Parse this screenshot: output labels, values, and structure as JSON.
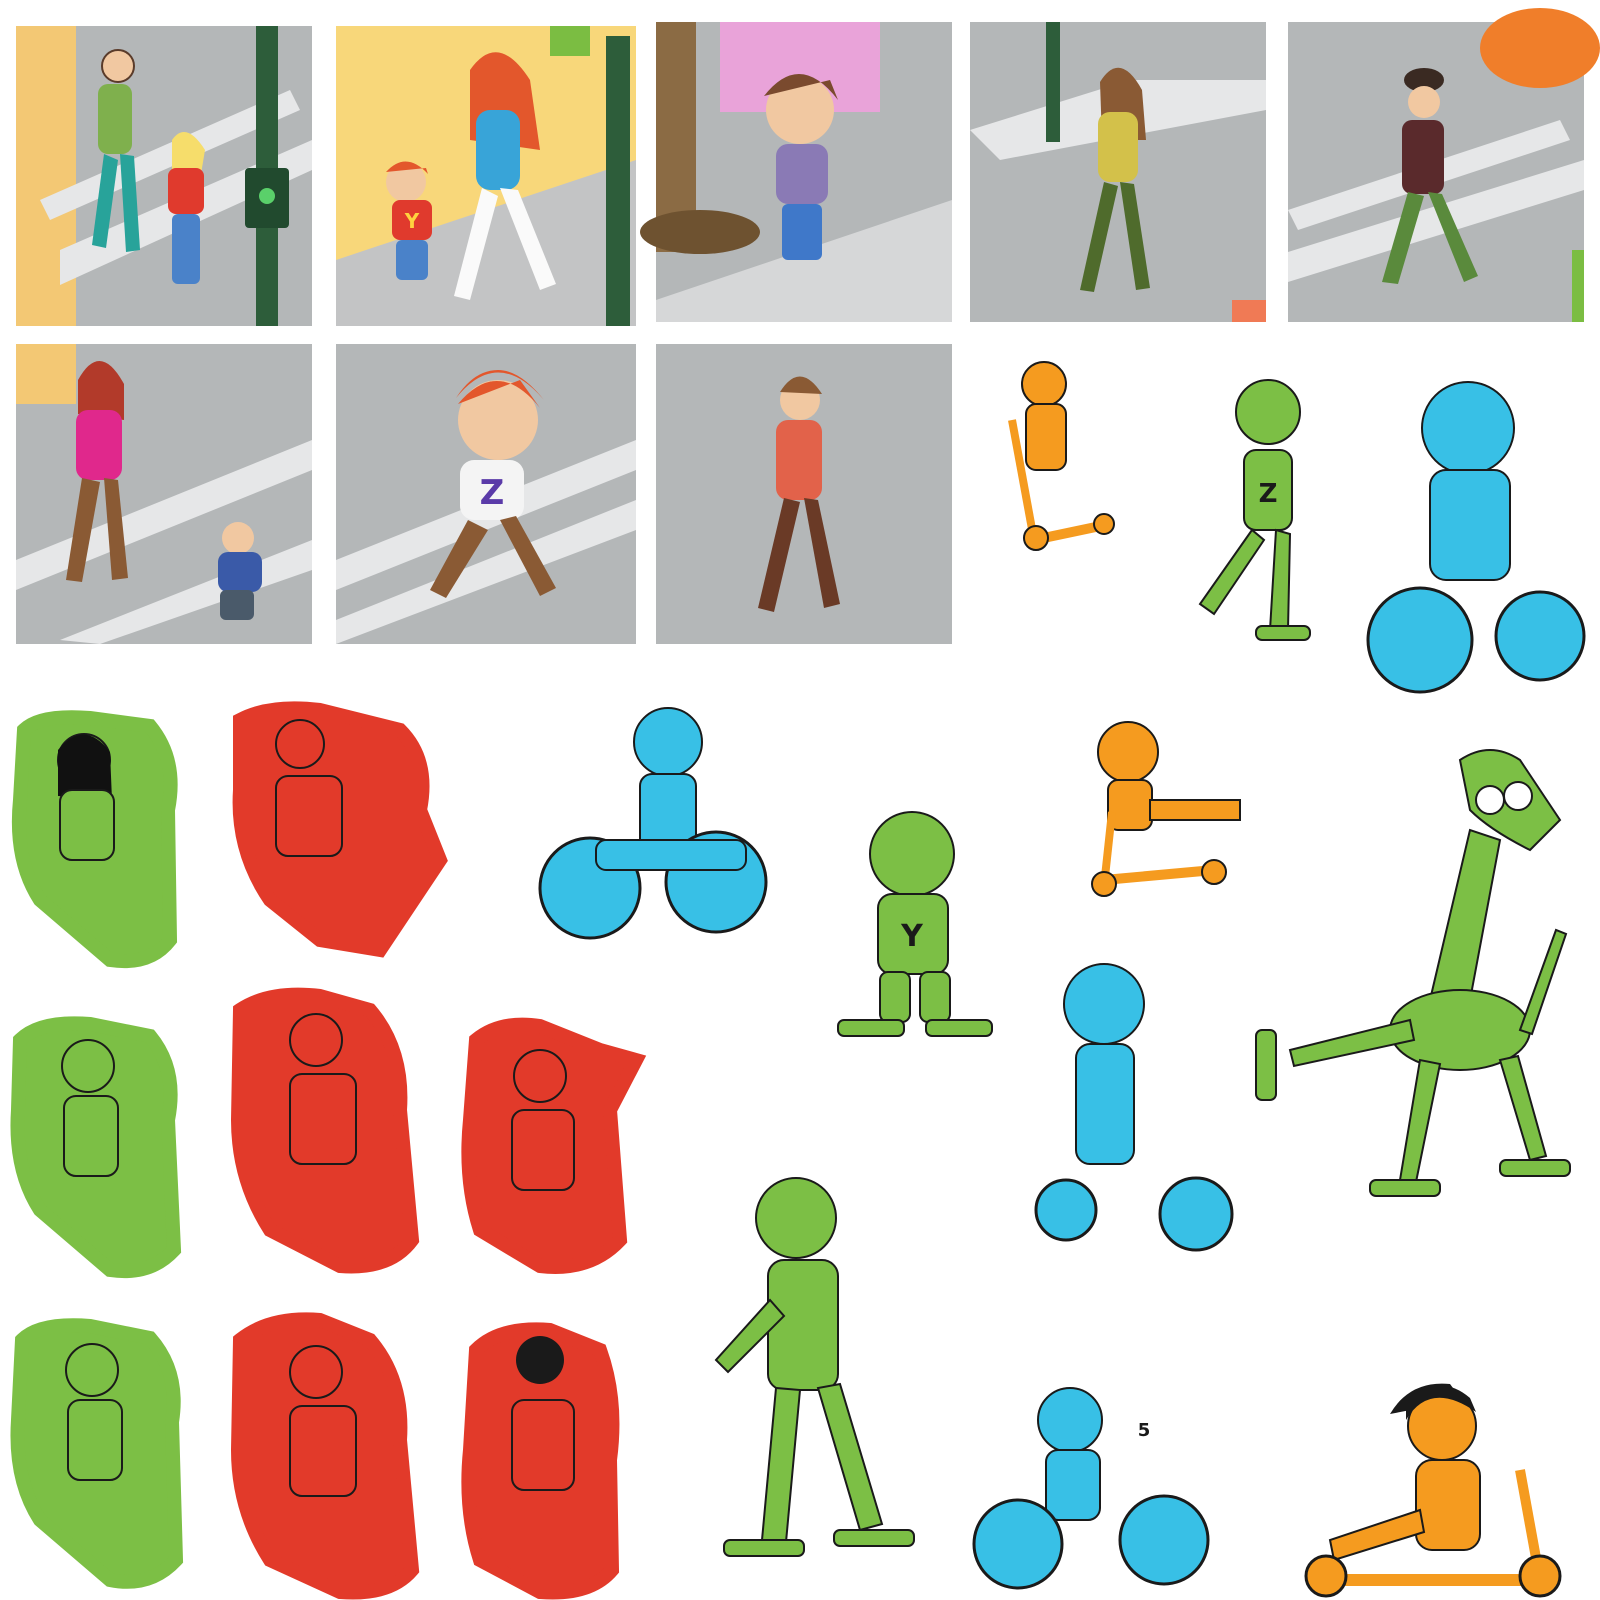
{
  "palette": {
    "green": "#7cbf45",
    "red": "#e23a2a",
    "blue": "#38c0e6",
    "orange": "#f59b1f",
    "scene_gray": "#b4b7b8",
    "stripe": "#e6e7e8",
    "yellow_wall": "#f8d77a",
    "outline": "#1a1a1a"
  },
  "scenes": {
    "row1": [
      {
        "name": "man-girl-crossing",
        "bg": "#b4b7b8",
        "wall": "#f3c874"
      },
      {
        "name": "woman-boy-walking",
        "bg": "#f8d77a",
        "wall": "#f6e39c"
      },
      {
        "name": "boy-standing",
        "bg": "#b4b7b8",
        "wall": "#e9a3d9"
      },
      {
        "name": "woman-walking",
        "bg": "#b4b7b8",
        "wall": "#c7c8c9"
      },
      {
        "name": "man-bowler-hat",
        "bg": "#b4b7b8",
        "wall": "#c7c8c9"
      }
    ],
    "row2": [
      {
        "name": "mother-chasing-child",
        "bg": "#b4b7b8",
        "wall": "#f3c874"
      },
      {
        "name": "running-boy-z",
        "bg": "#b4b7b8",
        "wall": "#c7c8c9"
      },
      {
        "name": "man-walking",
        "bg": "#b4b7b8",
        "wall": "#b4b7b8"
      }
    ]
  },
  "shirt_letters": {
    "y": "Y",
    "z": "Z",
    "bike_number": "5"
  }
}
